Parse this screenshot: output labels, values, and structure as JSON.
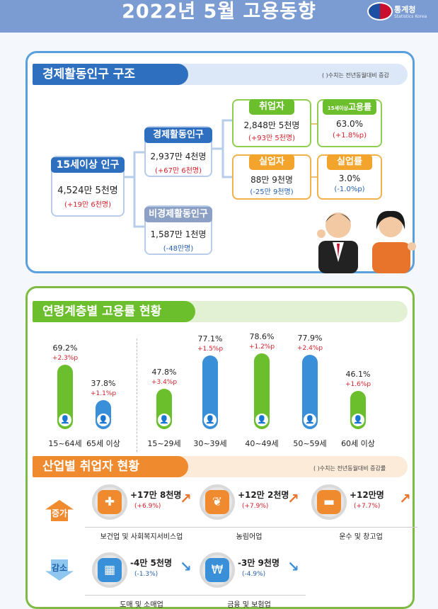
{
  "header": {
    "title": "2022년  5월 고용동향",
    "org_name": "통계청",
    "org_sub": "Statistics Korea"
  },
  "structure": {
    "title": "경제활동인구 구조",
    "note": "(  )수치는 전년동월대비 증감",
    "pop15": {
      "label": "15세이상 인구",
      "value": "4,524만 5천명",
      "change": "(+19만 6천명)"
    },
    "active": {
      "label": "경제활동인구",
      "value": "2,937만 4천명",
      "change": "(+67만 6천명)"
    },
    "inactive": {
      "label": "비경제활동인구",
      "value": "1,587만 1천명",
      "change": "(-48만명)"
    },
    "employed": {
      "label": "취업자",
      "value": "2,848만 5천명",
      "change": "(+93만 5천명)"
    },
    "unemployed": {
      "label": "실업자",
      "value": "88만 9천명",
      "change": "(-25만 9천명)"
    },
    "emp_rate": {
      "label_small": "15세이상",
      "label": "고용률",
      "value": "63.0%",
      "change": "(+1.8%p)"
    },
    "unemp_rate": {
      "label": "실업률",
      "value": "3.0%",
      "change": "(-1.0%p)"
    }
  },
  "chart_data": {
    "type": "bar",
    "title": "연령계층별 고용률 현황",
    "unit": "%",
    "ylim": [
      0,
      100
    ],
    "bars": [
      {
        "label": "15~64세",
        "value": 69.2,
        "value_text": "69.2%",
        "change": "+2.3%p",
        "color": "#6cbf2c"
      },
      {
        "label": "65세 이상",
        "value": 37.8,
        "value_text": "37.8%",
        "change": "+1.1%p",
        "color": "#3a8fd9"
      },
      {
        "label": "15~29세",
        "value": 47.8,
        "value_text": "47.8%",
        "change": "+3.4%p",
        "color": "#6cbf2c"
      },
      {
        "label": "30~39세",
        "value": 77.1,
        "value_text": "77.1%",
        "change": "+1.5%p",
        "color": "#3a8fd9"
      },
      {
        "label": "40~49세",
        "value": 78.6,
        "value_text": "78.6%",
        "change": "+1.2%p",
        "color": "#6cbf2c"
      },
      {
        "label": "50~59세",
        "value": 77.9,
        "value_text": "77.9%",
        "change": "+2.4%p",
        "color": "#3a8fd9"
      },
      {
        "label": "60세 이상",
        "value": 46.1,
        "value_text": "46.1%",
        "change": "+1.6%p",
        "color": "#6cbf2c"
      }
    ]
  },
  "industry": {
    "title": "산업별 취업자 현황",
    "note": "(  )수치는 전년동월대비 증감률",
    "increase_label": "증가",
    "decrease_label": "감소",
    "increase": [
      {
        "name": "보건업 및 사회복지서비스업",
        "value": "+17만 8천명",
        "change": "(+6.9%)",
        "icon": "first-aid-kit-icon",
        "color": "#f08a2e"
      },
      {
        "name": "농림어업",
        "value": "+12만 2천명",
        "change": "(+7.9%)",
        "icon": "wheat-icon",
        "color": "#f08a2e"
      },
      {
        "name": "운수 및 창고업",
        "value": "+12만명",
        "change": "(+7.7%)",
        "icon": "truck-icon",
        "color": "#f08a2e"
      }
    ],
    "decrease": [
      {
        "name": "도매 및 소매업",
        "value": "-4만 5천명",
        "change": "(-1.3%)",
        "icon": "shopping-basket-icon",
        "color": "#3a8fd9"
      },
      {
        "name": "금융 및 보험업",
        "value": "-3만 9천명",
        "change": "(-4.9%)",
        "icon": "atm-icon",
        "color": "#3a8fd9"
      }
    ]
  }
}
